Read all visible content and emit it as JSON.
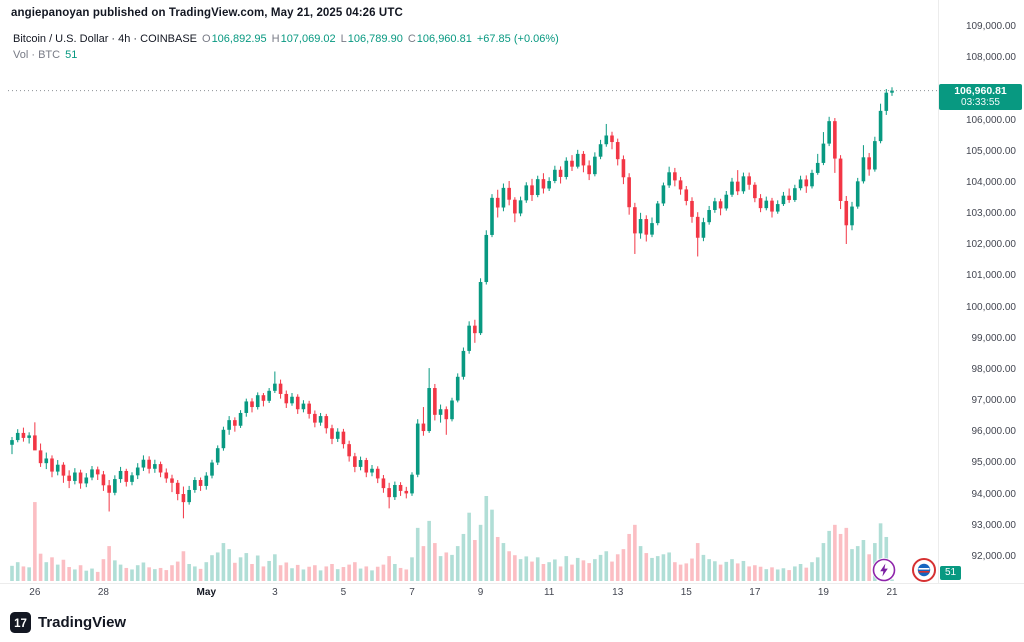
{
  "attribution": "angiepanoyan published on TradingView.com, May 21, 2025 04:26 UTC",
  "header": {
    "symbol_title": "Bitcoin / U.S. Dollar · 4h · COINBASE",
    "ohlc": {
      "o_label": "O",
      "o": "106,892.95",
      "h_label": "H",
      "h": "107,069.02",
      "l_label": "L",
      "l": "106,789.90",
      "c_label": "C",
      "c": "106,960.81",
      "change": "+67.85 (+0.06%)"
    },
    "volume_label": "Vol · BTC",
    "volume_value": "51"
  },
  "price_badge": {
    "price": "106,960.81",
    "countdown": "03:33:55"
  },
  "volume_badge": {
    "value": "51"
  },
  "footer": {
    "brand": "TradingView",
    "logo_glyph": "17"
  },
  "colors": {
    "up": "#089981",
    "down": "#f23645",
    "vol_up": "rgba(8,153,129,0.32)",
    "vol_down": "rgba(242,54,69,0.32)",
    "badge": "#089981",
    "axis_line": "#ececec",
    "price_line": "#8c9196"
  },
  "price_axis": {
    "labels": [
      "109,000.00",
      "108,000.00",
      "107,000.00",
      "106,000.00",
      "105,000.00",
      "104,000.00",
      "103,000.00",
      "102,000.00",
      "101,000.00",
      "100,000.00",
      "99,000.00",
      "98,000.00",
      "97,000.00",
      "96,000.00",
      "95,000.00",
      "94,000.00",
      "93,000.00",
      "92,000.00"
    ]
  },
  "chart_data": {
    "type": "candlestick+volume",
    "title": "Bitcoin / U.S. Dollar",
    "exchange": "COINBASE",
    "interval": "4h",
    "ylim": [
      92000,
      109000
    ],
    "y_tick_step": 1000,
    "current_price": 106960.81,
    "current_bar": {
      "open": 106892.95,
      "high": 107069.02,
      "low": 106789.9,
      "close": 106960.81,
      "volume_btc": 51
    },
    "x_tick_labels": [
      "26",
      "28",
      "May",
      "3",
      "5",
      "7",
      "9",
      "11",
      "13",
      "15",
      "17",
      "19",
      "21"
    ],
    "x_tick_indices": [
      4,
      16,
      34,
      46,
      58,
      70,
      82,
      94,
      106,
      118,
      130,
      142,
      154
    ],
    "legend_position": "top-left",
    "grid": false,
    "candles": [
      [
        95600,
        95850,
        95300,
        95750,
        500
      ],
      [
        95750,
        96100,
        95680,
        95980,
        620
      ],
      [
        95980,
        96150,
        95700,
        95820,
        480
      ],
      [
        95820,
        96000,
        95640,
        95900,
        450
      ],
      [
        95900,
        96320,
        95480,
        95420,
        2600
      ],
      [
        95420,
        95640,
        94890,
        95010,
        900
      ],
      [
        95010,
        95350,
        94820,
        95160,
        620
      ],
      [
        95160,
        95260,
        94560,
        94740,
        780
      ],
      [
        94740,
        95110,
        94620,
        94960,
        540
      ],
      [
        94960,
        95040,
        94380,
        94610,
        700
      ],
      [
        94610,
        94780,
        94210,
        94440,
        460
      ],
      [
        94440,
        94850,
        94330,
        94710,
        380
      ],
      [
        94710,
        94800,
        94190,
        94360,
        520
      ],
      [
        94360,
        94690,
        94240,
        94550,
        340
      ],
      [
        94550,
        94920,
        94460,
        94810,
        410
      ],
      [
        94810,
        94900,
        94470,
        94650,
        300
      ],
      [
        94650,
        94760,
        94120,
        94300,
        720
      ],
      [
        94300,
        94470,
        93460,
        94060,
        1150
      ],
      [
        94060,
        94620,
        93980,
        94500,
        680
      ],
      [
        94500,
        94890,
        94380,
        94760,
        540
      ],
      [
        94760,
        94830,
        94260,
        94410,
        430
      ],
      [
        94410,
        94720,
        94300,
        94620,
        380
      ],
      [
        94620,
        95010,
        94500,
        94870,
        520
      ],
      [
        94870,
        95260,
        94760,
        95120,
        610
      ],
      [
        95120,
        95230,
        94680,
        94830,
        450
      ],
      [
        94830,
        95120,
        94700,
        94980,
        390
      ],
      [
        94980,
        95060,
        94560,
        94710,
        430
      ],
      [
        94710,
        94840,
        94380,
        94520,
        360
      ],
      [
        94520,
        94640,
        94080,
        94380,
        520
      ],
      [
        94380,
        94470,
        93820,
        94020,
        640
      ],
      [
        94020,
        94260,
        93240,
        93760,
        980
      ],
      [
        93760,
        94280,
        93680,
        94150,
        560
      ],
      [
        94150,
        94560,
        94060,
        94470,
        480
      ],
      [
        94470,
        94550,
        94120,
        94280,
        400
      ],
      [
        94280,
        94720,
        94160,
        94610,
        620
      ],
      [
        94610,
        95120,
        94520,
        95030,
        850
      ],
      [
        95030,
        95580,
        94950,
        95490,
        940
      ],
      [
        95490,
        96180,
        95410,
        96080,
        1250
      ],
      [
        96080,
        96520,
        95920,
        96390,
        1050
      ],
      [
        96390,
        96480,
        96020,
        96210,
        600
      ],
      [
        96210,
        96710,
        96140,
        96620,
        780
      ],
      [
        96620,
        97080,
        96500,
        96990,
        920
      ],
      [
        96990,
        97090,
        96640,
        96810,
        560
      ],
      [
        96810,
        97280,
        96730,
        97190,
        840
      ],
      [
        97190,
        97260,
        96830,
        97010,
        480
      ],
      [
        97010,
        97420,
        96940,
        97330,
        660
      ],
      [
        97330,
        97950,
        97260,
        97560,
        880
      ],
      [
        97560,
        97690,
        97080,
        97230,
        520
      ],
      [
        97230,
        97340,
        96780,
        96930,
        610
      ],
      [
        96930,
        97260,
        96850,
        97140,
        420
      ],
      [
        97140,
        97220,
        96590,
        96740,
        530
      ],
      [
        96740,
        97030,
        96640,
        96920,
        380
      ],
      [
        96920,
        97010,
        96440,
        96590,
        470
      ],
      [
        96590,
        96700,
        96160,
        96310,
        520
      ],
      [
        96310,
        96620,
        96210,
        96520,
        350
      ],
      [
        96520,
        96590,
        95960,
        96130,
        480
      ],
      [
        96130,
        96240,
        95620,
        95790,
        560
      ],
      [
        95790,
        96130,
        95690,
        96020,
        390
      ],
      [
        96020,
        96110,
        95480,
        95620,
        460
      ],
      [
        95620,
        95730,
        95060,
        95230,
        540
      ],
      [
        95230,
        95340,
        94720,
        94890,
        620
      ],
      [
        94890,
        95220,
        94780,
        95110,
        410
      ],
      [
        95110,
        95180,
        94560,
        94710,
        480
      ],
      [
        94710,
        94950,
        94590,
        94830,
        350
      ],
      [
        94830,
        94910,
        94370,
        94520,
        470
      ],
      [
        94520,
        94630,
        94060,
        94210,
        540
      ],
      [
        94210,
        94380,
        93560,
        93920,
        820
      ],
      [
        93920,
        94420,
        93830,
        94310,
        560
      ],
      [
        94310,
        94400,
        93960,
        94120,
        430
      ],
      [
        94120,
        94250,
        93880,
        94040,
        380
      ],
      [
        94040,
        94720,
        93960,
        94640,
        780
      ],
      [
        94640,
        96420,
        94560,
        96280,
        1750
      ],
      [
        96280,
        96810,
        95890,
        96040,
        1150
      ],
      [
        96040,
        98060,
        95980,
        97420,
        1980
      ],
      [
        97420,
        97550,
        96380,
        96560,
        1250
      ],
      [
        96560,
        96890,
        96310,
        96740,
        820
      ],
      [
        96740,
        96830,
        95920,
        96420,
        940
      ],
      [
        96420,
        97110,
        96350,
        97020,
        860
      ],
      [
        97020,
        97890,
        96960,
        97780,
        1150
      ],
      [
        97780,
        98720,
        97690,
        98610,
        1550
      ],
      [
        98610,
        99560,
        98520,
        99420,
        2250
      ],
      [
        99420,
        99610,
        98870,
        99180,
        1350
      ],
      [
        99180,
        100940,
        99120,
        100820,
        1850
      ],
      [
        100820,
        102480,
        100740,
        102330,
        2800
      ],
      [
        102330,
        103640,
        102260,
        103520,
        2350
      ],
      [
        103520,
        103780,
        102890,
        103210,
        1450
      ],
      [
        103210,
        103980,
        103090,
        103840,
        1250
      ],
      [
        103840,
        104060,
        103280,
        103460,
        980
      ],
      [
        103460,
        103540,
        102740,
        103020,
        850
      ],
      [
        103020,
        103560,
        102930,
        103440,
        720
      ],
      [
        103440,
        104020,
        103360,
        103920,
        810
      ],
      [
        103920,
        104130,
        103420,
        103610,
        640
      ],
      [
        103610,
        104230,
        103540,
        104120,
        780
      ],
      [
        104120,
        104310,
        103660,
        103820,
        560
      ],
      [
        103820,
        104180,
        103740,
        104060,
        620
      ],
      [
        104060,
        104550,
        103990,
        104420,
        710
      ],
      [
        104420,
        104530,
        103980,
        104190,
        480
      ],
      [
        104190,
        104820,
        104110,
        104710,
        820
      ],
      [
        104710,
        104890,
        104380,
        104520,
        540
      ],
      [
        104520,
        105060,
        104460,
        104930,
        760
      ],
      [
        104930,
        105020,
        104340,
        104560,
        680
      ],
      [
        104560,
        104720,
        104090,
        104280,
        590
      ],
      [
        104280,
        104980,
        104210,
        104840,
        720
      ],
      [
        104840,
        105380,
        104760,
        105240,
        860
      ],
      [
        105240,
        105890,
        105160,
        105520,
        980
      ],
      [
        105520,
        105640,
        105080,
        105310,
        640
      ],
      [
        105310,
        105420,
        104560,
        104760,
        880
      ],
      [
        104760,
        104880,
        103960,
        104180,
        1050
      ],
      [
        104180,
        104310,
        102980,
        103220,
        1550
      ],
      [
        103220,
        103360,
        101720,
        102380,
        1850
      ],
      [
        102380,
        103040,
        102210,
        102840,
        1150
      ],
      [
        102840,
        102960,
        102120,
        102340,
        920
      ],
      [
        102340,
        102890,
        102260,
        102710,
        760
      ],
      [
        102710,
        103420,
        102640,
        103340,
        820
      ],
      [
        103340,
        104010,
        103260,
        103920,
        880
      ],
      [
        103920,
        104520,
        103840,
        104340,
        940
      ],
      [
        104340,
        104480,
        103890,
        104080,
        620
      ],
      [
        104080,
        104190,
        103620,
        103790,
        540
      ],
      [
        103790,
        103900,
        103280,
        103420,
        580
      ],
      [
        103420,
        103540,
        102720,
        102910,
        740
      ],
      [
        102910,
        103060,
        101640,
        102240,
        1250
      ],
      [
        102240,
        102880,
        102130,
        102740,
        860
      ],
      [
        102740,
        103260,
        102660,
        103130,
        720
      ],
      [
        103130,
        103520,
        103040,
        103410,
        650
      ],
      [
        103410,
        103490,
        102960,
        103180,
        540
      ],
      [
        103180,
        103740,
        103110,
        103620,
        630
      ],
      [
        103620,
        104160,
        103550,
        104040,
        720
      ],
      [
        104040,
        104410,
        103610,
        103730,
        580
      ],
      [
        103730,
        104330,
        103650,
        104210,
        660
      ],
      [
        104210,
        104330,
        103780,
        103940,
        480
      ],
      [
        103940,
        104020,
        103380,
        103510,
        520
      ],
      [
        103510,
        103640,
        103060,
        103190,
        470
      ],
      [
        103190,
        103560,
        103120,
        103430,
        390
      ],
      [
        103430,
        103520,
        102890,
        103080,
        450
      ],
      [
        103080,
        103440,
        103010,
        103320,
        380
      ],
      [
        103320,
        103710,
        103260,
        103590,
        420
      ],
      [
        103590,
        103820,
        103360,
        103450,
        360
      ],
      [
        103450,
        103940,
        103390,
        103830,
        480
      ],
      [
        103830,
        104230,
        103760,
        104110,
        560
      ],
      [
        104110,
        104240,
        103680,
        103890,
        440
      ],
      [
        103890,
        104420,
        103820,
        104320,
        620
      ],
      [
        104320,
        104930,
        104260,
        104640,
        780
      ],
      [
        104640,
        105630,
        104570,
        105260,
        1250
      ],
      [
        105260,
        106120,
        105180,
        105980,
        1650
      ],
      [
        105980,
        106080,
        104320,
        104780,
        1850
      ],
      [
        104780,
        104890,
        103160,
        103420,
        1550
      ],
      [
        103420,
        103580,
        102040,
        102640,
        1750
      ],
      [
        102640,
        103390,
        102480,
        103240,
        1050
      ],
      [
        103240,
        104160,
        103170,
        104050,
        1150
      ],
      [
        104050,
        105210,
        103980,
        104820,
        1350
      ],
      [
        104820,
        104960,
        104230,
        104430,
        880
      ],
      [
        104430,
        105480,
        104360,
        105340,
        1250
      ],
      [
        105340,
        106540,
        105270,
        106310,
        1900
      ],
      [
        106310,
        107010,
        106180,
        106893,
        1450
      ],
      [
        106892.95,
        107069.02,
        106789.9,
        106960.81,
        51
      ]
    ]
  }
}
